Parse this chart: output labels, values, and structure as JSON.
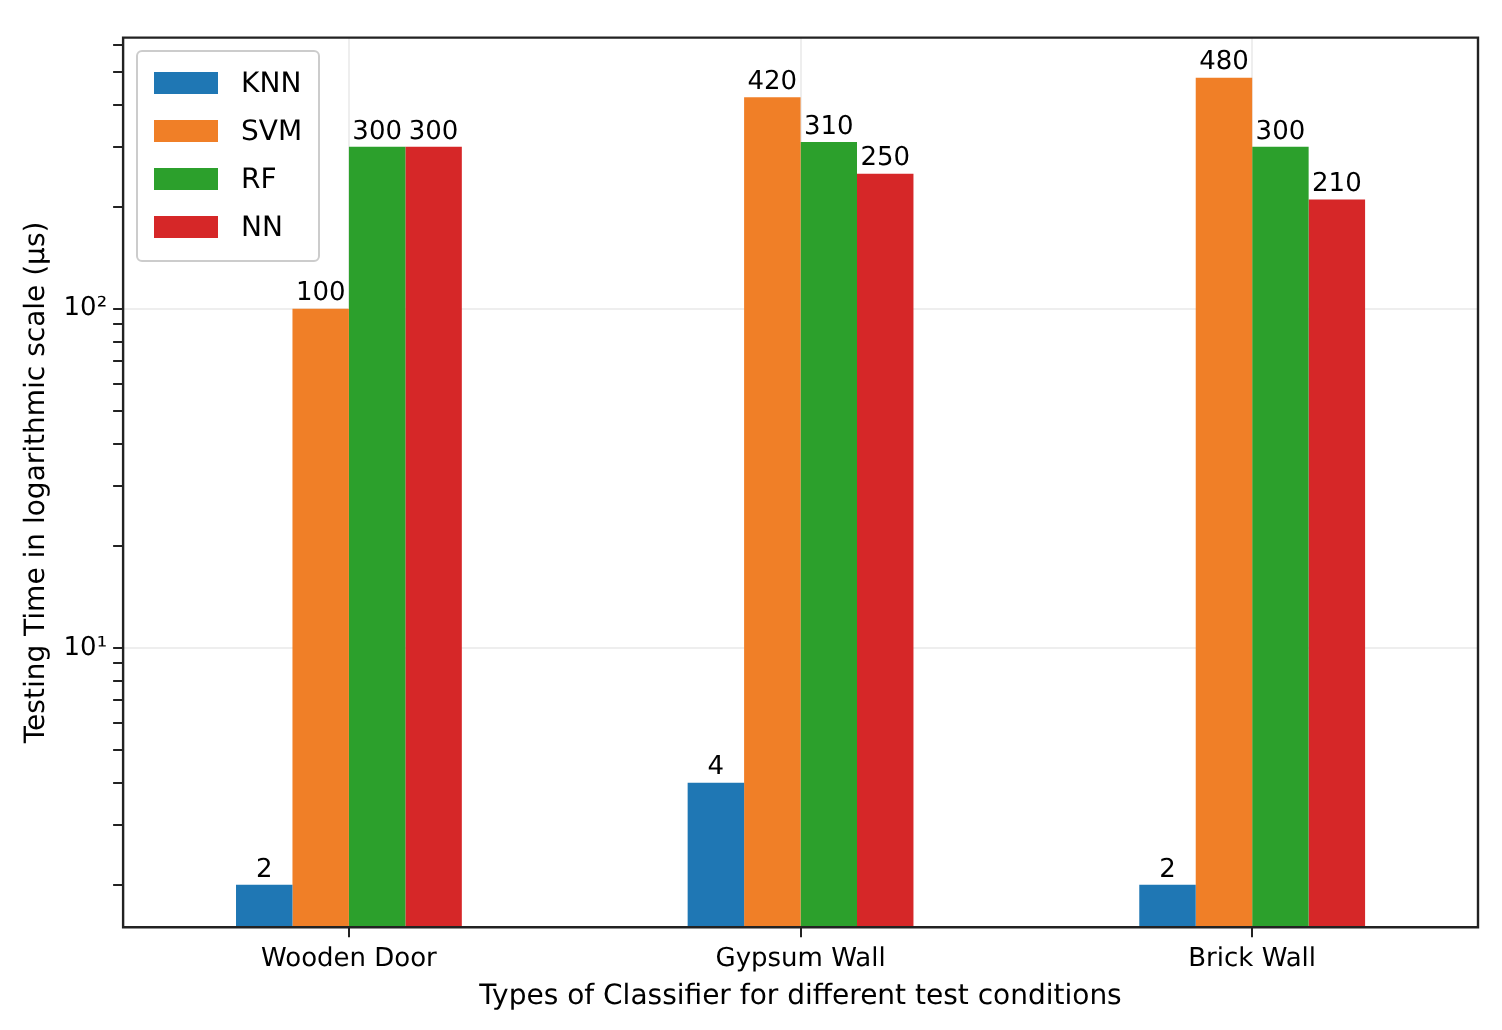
{
  "chart_data": {
    "type": "bar",
    "xlabel": "Types of Classifier for different test conditions",
    "ylabel": "Testing Time in logarithmic scale (µs)",
    "categories": [
      "Wooden Door",
      "Gypsum Wall",
      "Brick Wall"
    ],
    "series": [
      {
        "name": "KNN",
        "color": "#1f77b4",
        "values": [
          2,
          4,
          2
        ]
      },
      {
        "name": "SVM",
        "color": "#f07f27",
        "values": [
          100,
          420,
          480
        ]
      },
      {
        "name": "RF",
        "color": "#2ca02c",
        "values": [
          300,
          310,
          300
        ]
      },
      {
        "name": "NN",
        "color": "#d62728",
        "values": [
          300,
          250,
          210
        ]
      }
    ],
    "log": true,
    "ylim": [
      1.5,
      630
    ],
    "yticks": [
      {
        "value": 2,
        "label": null
      },
      {
        "value": 3,
        "label": null
      },
      {
        "value": 4,
        "label": null
      },
      {
        "value": 5,
        "label": null
      },
      {
        "value": 6,
        "label": null
      },
      {
        "value": 7,
        "label": null
      },
      {
        "value": 8,
        "label": null
      },
      {
        "value": 9,
        "label": null
      },
      {
        "value": 10,
        "label": "10¹"
      },
      {
        "value": 20,
        "label": null
      },
      {
        "value": 30,
        "label": null
      },
      {
        "value": 40,
        "label": null
      },
      {
        "value": 50,
        "label": null
      },
      {
        "value": 60,
        "label": null
      },
      {
        "value": 70,
        "label": null
      },
      {
        "value": 80,
        "label": null
      },
      {
        "value": 90,
        "label": null
      },
      {
        "value": 100,
        "label": "10²"
      },
      {
        "value": 200,
        "label": null
      },
      {
        "value": 300,
        "label": null
      },
      {
        "value": 400,
        "label": null
      },
      {
        "value": 500,
        "label": null
      },
      {
        "value": 600,
        "label": null
      }
    ],
    "grid": true,
    "legend": "top left",
    "data_labels": true
  }
}
